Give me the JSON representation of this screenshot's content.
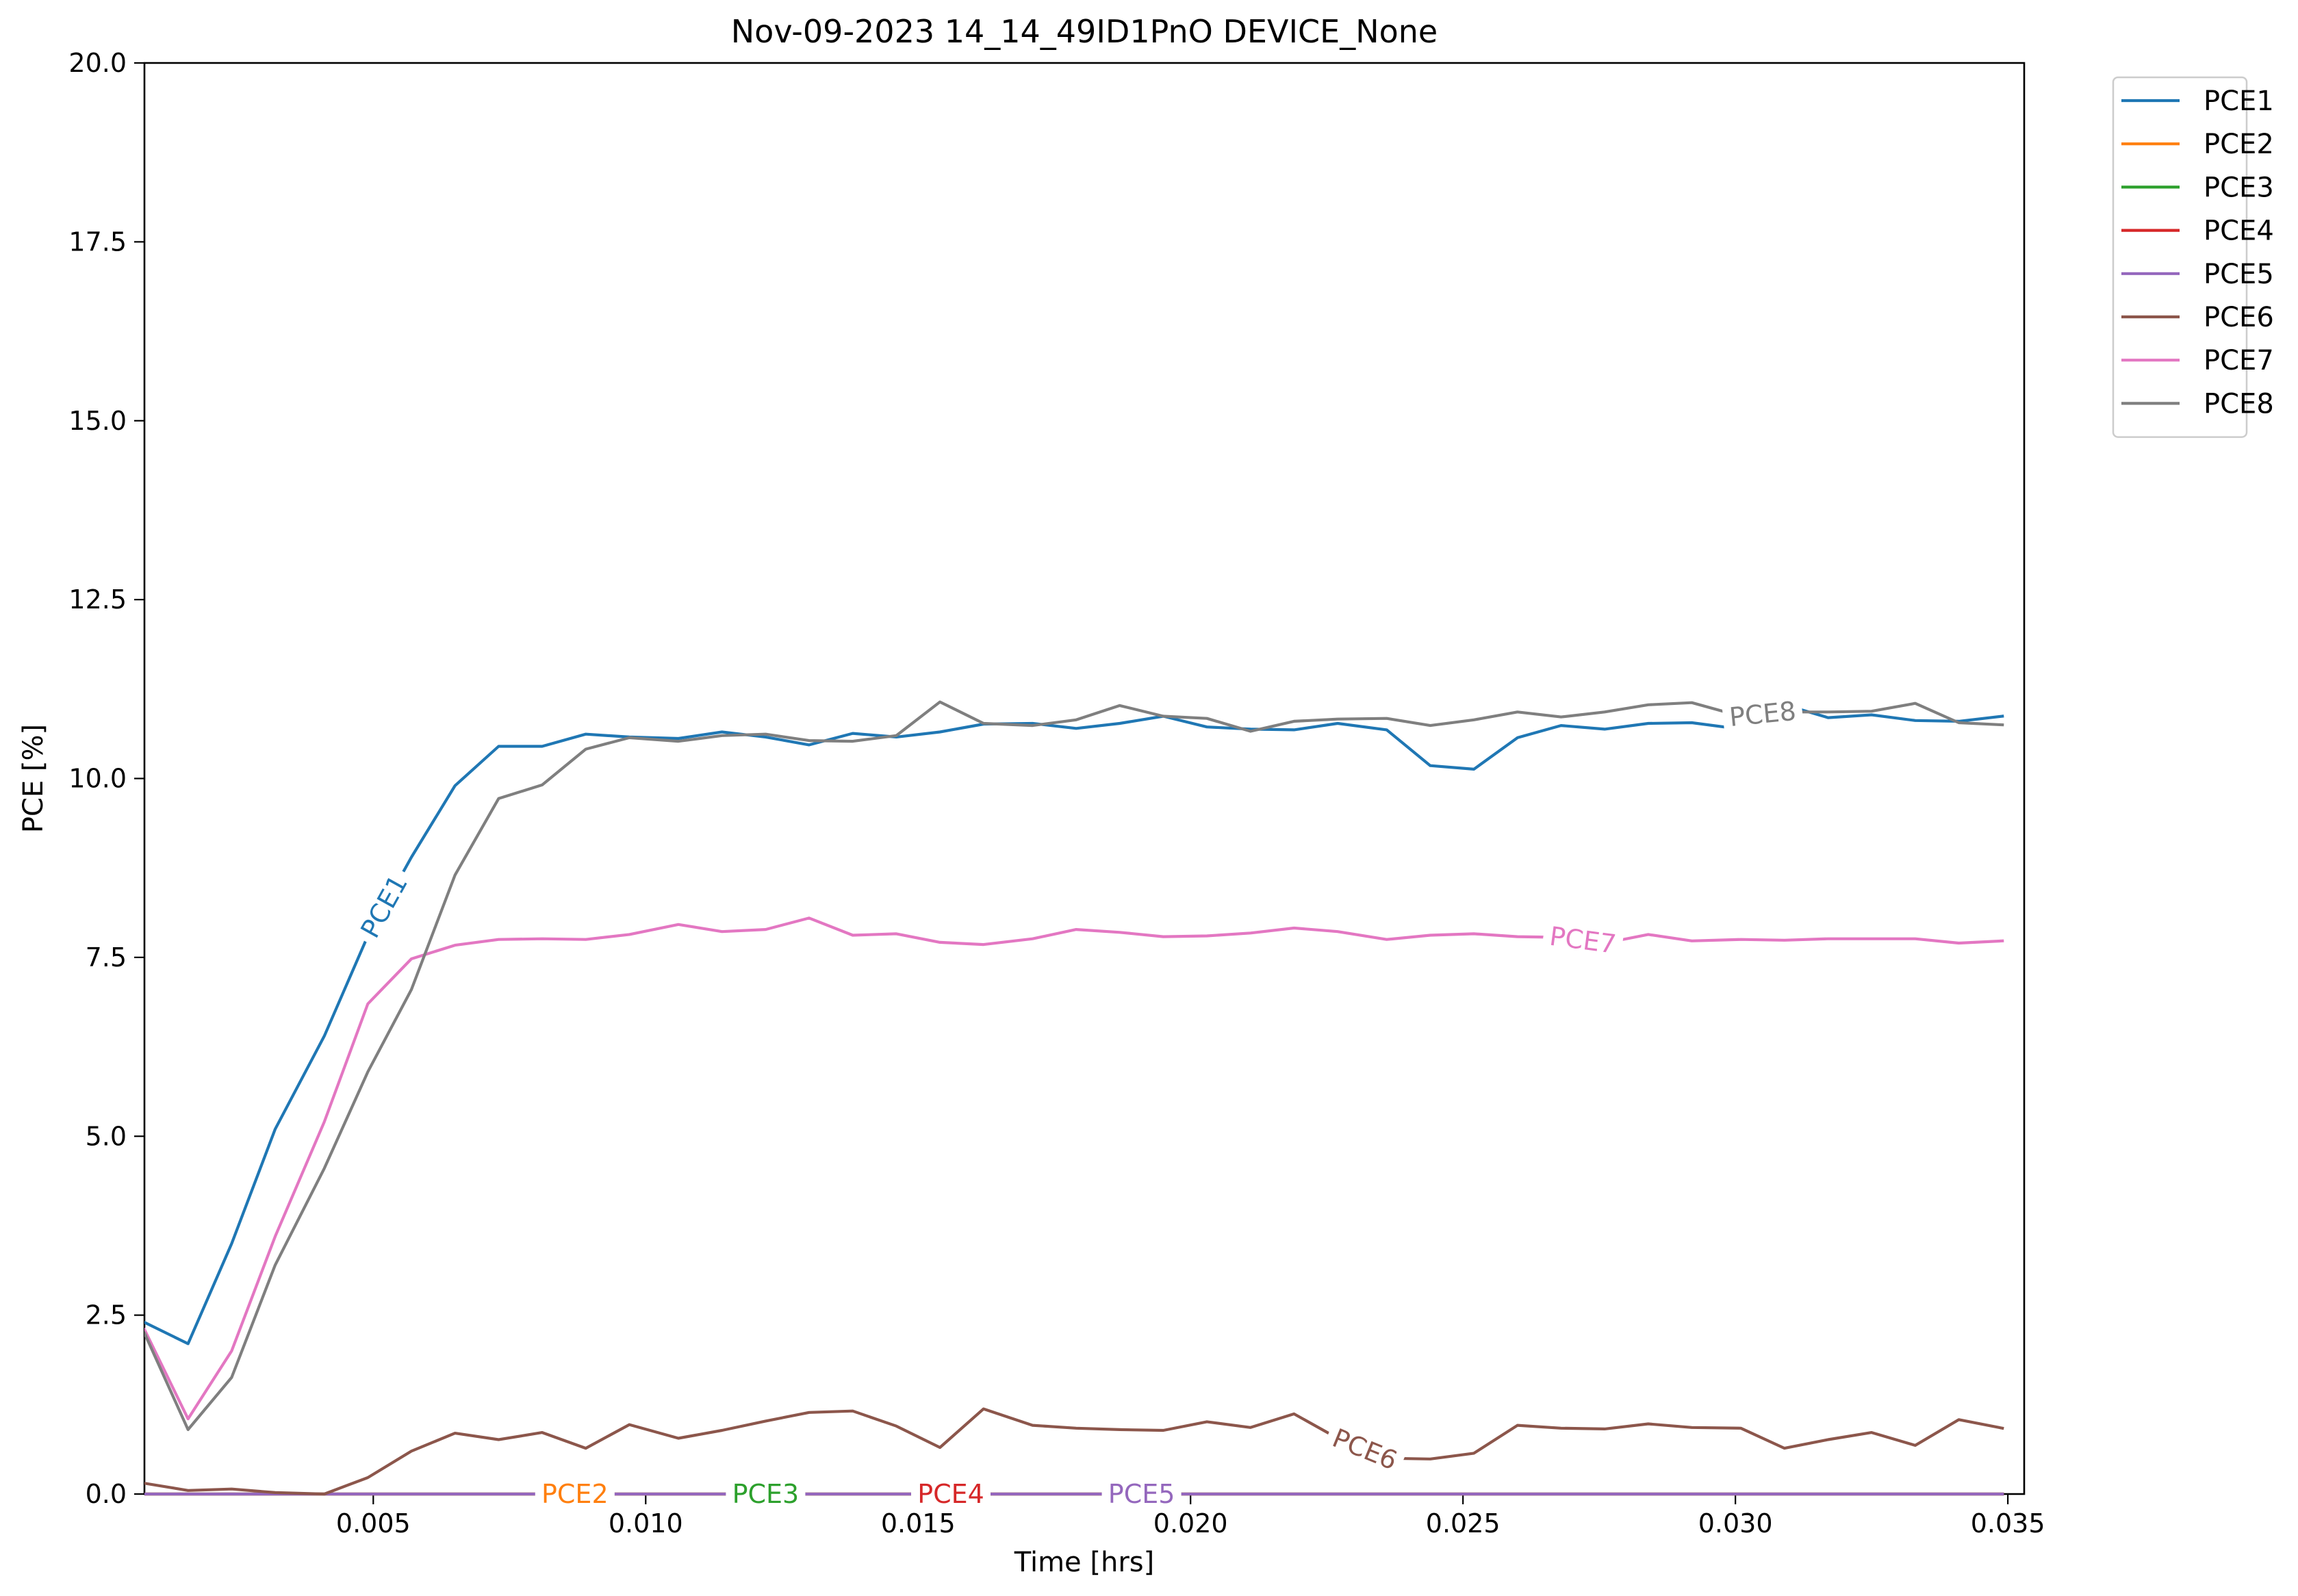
{
  "chart_data": {
    "type": "line",
    "title": "Nov-09-2023 14_14_49ID1PnO DEVICE_None",
    "xlabel": "Time [hrs]",
    "ylabel": "PCE [%]",
    "xlim": [
      0.0008,
      0.0353
    ],
    "ylim": [
      0,
      20
    ],
    "xticks": [
      0.005,
      0.01,
      0.015,
      0.02,
      0.025,
      0.03,
      0.035
    ],
    "xtick_labels": [
      "0.005",
      "0.010",
      "0.015",
      "0.020",
      "0.025",
      "0.030",
      "0.035"
    ],
    "yticks": [
      0,
      2.5,
      5,
      7.5,
      10,
      12.5,
      15,
      17.5,
      20
    ],
    "ytick_labels": [
      "0.0",
      "2.5",
      "5.0",
      "7.5",
      "10.0",
      "12.5",
      "15.0",
      "17.5",
      "20.0"
    ],
    "grid": false,
    "legend_position": "outside top-right",
    "x": [
      0.0008,
      0.0016,
      0.0024,
      0.0032,
      0.0041,
      0.0049,
      0.0057,
      0.0065,
      0.0073,
      0.0081,
      0.0089,
      0.0097,
      0.0106,
      0.0114,
      0.0122,
      0.013,
      0.0138,
      0.0146,
      0.0154,
      0.0162,
      0.0171,
      0.0179,
      0.0187,
      0.0195,
      0.0203,
      0.0211,
      0.0219,
      0.0227,
      0.0236,
      0.0244,
      0.0252,
      0.026,
      0.0268,
      0.0276,
      0.0284,
      0.0292,
      0.0301,
      0.0309,
      0.0317,
      0.0325,
      0.0333,
      0.0341,
      0.0349
    ],
    "series": [
      {
        "name": "PCE1",
        "color": "#1f77b4",
        "label": "PCE1",
        "label_at": 0.0052,
        "values": [
          2.4,
          2.1,
          3.5,
          5.1,
          6.4,
          7.8,
          8.9,
          9.9,
          10.45,
          10.45,
          10.62,
          10.58,
          10.56,
          10.65,
          10.58,
          10.47,
          10.63,
          10.58,
          10.65,
          10.76,
          10.77,
          10.7,
          10.77,
          10.87,
          10.72,
          10.69,
          10.68,
          10.77,
          10.68,
          10.18,
          10.13,
          10.57,
          10.74,
          10.69,
          10.77,
          10.78,
          10.69,
          11.03,
          10.85,
          10.89,
          10.81,
          10.8,
          10.87
        ]
      },
      {
        "name": "PCE2",
        "color": "#ff7f0e",
        "label": "PCE2",
        "label_at": 0.0087,
        "values": [
          0,
          0,
          0,
          0,
          0,
          0,
          0,
          0,
          0,
          0,
          0,
          0,
          0,
          0,
          0,
          0,
          0,
          0,
          0,
          0,
          0,
          0,
          0,
          0,
          0,
          0,
          0,
          0,
          0,
          0,
          0,
          0,
          0,
          0,
          0,
          0,
          0,
          0,
          0,
          0,
          0,
          0,
          0
        ]
      },
      {
        "name": "PCE3",
        "color": "#2ca02c",
        "label": "PCE3",
        "label_at": 0.0122,
        "values": [
          0,
          0,
          0,
          0,
          0,
          0,
          0,
          0,
          0,
          0,
          0,
          0,
          0,
          0,
          0,
          0,
          0,
          0,
          0,
          0,
          0,
          0,
          0,
          0,
          0,
          0,
          0,
          0,
          0,
          0,
          0,
          0,
          0,
          0,
          0,
          0,
          0,
          0,
          0,
          0,
          0,
          0,
          0
        ]
      },
      {
        "name": "PCE4",
        "color": "#d62728",
        "label": "PCE4",
        "label_at": 0.0156,
        "values": [
          0,
          0,
          0,
          0,
          0,
          0,
          0,
          0,
          0,
          0,
          0,
          0,
          0,
          0,
          0,
          0,
          0,
          0,
          0,
          0,
          0,
          0,
          0,
          0,
          0,
          0,
          0,
          0,
          0,
          0,
          0,
          0,
          0,
          0,
          0,
          0,
          0,
          0,
          0,
          0,
          0,
          0,
          0
        ]
      },
      {
        "name": "PCE5",
        "color": "#9467bd",
        "label": "PCE5",
        "label_at": 0.0191,
        "values": [
          0,
          0,
          0,
          0,
          0,
          0,
          0,
          0,
          0,
          0,
          0,
          0,
          0,
          0,
          0,
          0,
          0,
          0,
          0,
          0,
          0,
          0,
          0,
          0,
          0,
          0,
          0,
          0,
          0,
          0,
          0,
          0,
          0,
          0,
          0,
          0,
          0,
          0,
          0,
          0,
          0,
          0,
          0
        ]
      },
      {
        "name": "PCE6",
        "color": "#8c564b",
        "label": "PCE6",
        "label_at": 0.0232,
        "values": [
          0.15,
          0.05,
          0.07,
          0.02,
          0.0,
          0.23,
          0.6,
          0.85,
          0.76,
          0.86,
          0.64,
          0.97,
          0.78,
          0.89,
          1.02,
          1.14,
          1.16,
          0.95,
          0.65,
          1.19,
          0.96,
          0.92,
          0.9,
          0.89,
          1.01,
          0.93,
          1.12,
          0.78,
          0.5,
          0.49,
          0.57,
          0.96,
          0.92,
          0.91,
          0.98,
          0.93,
          0.92,
          0.64,
          0.76,
          0.86,
          0.68,
          1.04,
          0.92
        ]
      },
      {
        "name": "PCE7",
        "color": "#e377c2",
        "label": "PCE7",
        "label_at": 0.0272,
        "values": [
          2.3,
          1.05,
          2.0,
          3.6,
          5.2,
          6.85,
          7.48,
          7.67,
          7.75,
          7.76,
          7.75,
          7.82,
          7.96,
          7.86,
          7.89,
          8.05,
          7.81,
          7.83,
          7.71,
          7.68,
          7.76,
          7.89,
          7.85,
          7.79,
          7.8,
          7.84,
          7.91,
          7.86,
          7.75,
          7.81,
          7.83,
          7.79,
          7.78,
          7.7,
          7.82,
          7.73,
          7.75,
          7.74,
          7.76,
          7.76,
          7.76,
          7.7,
          7.73
        ]
      },
      {
        "name": "PCE8",
        "color": "#7f7f7f",
        "label": "PCE8",
        "label_at": 0.0305,
        "values": [
          2.25,
          0.9,
          1.63,
          3.2,
          4.55,
          5.9,
          7.05,
          8.65,
          9.72,
          9.91,
          10.41,
          10.57,
          10.52,
          10.6,
          10.62,
          10.53,
          10.52,
          10.6,
          11.07,
          10.77,
          10.74,
          10.82,
          11.02,
          10.87,
          10.84,
          10.66,
          10.8,
          10.83,
          10.84,
          10.74,
          10.82,
          10.93,
          10.86,
          10.93,
          11.03,
          11.06,
          10.87,
          10.93,
          10.93,
          10.94,
          11.05,
          10.78,
          10.75
        ]
      }
    ]
  }
}
